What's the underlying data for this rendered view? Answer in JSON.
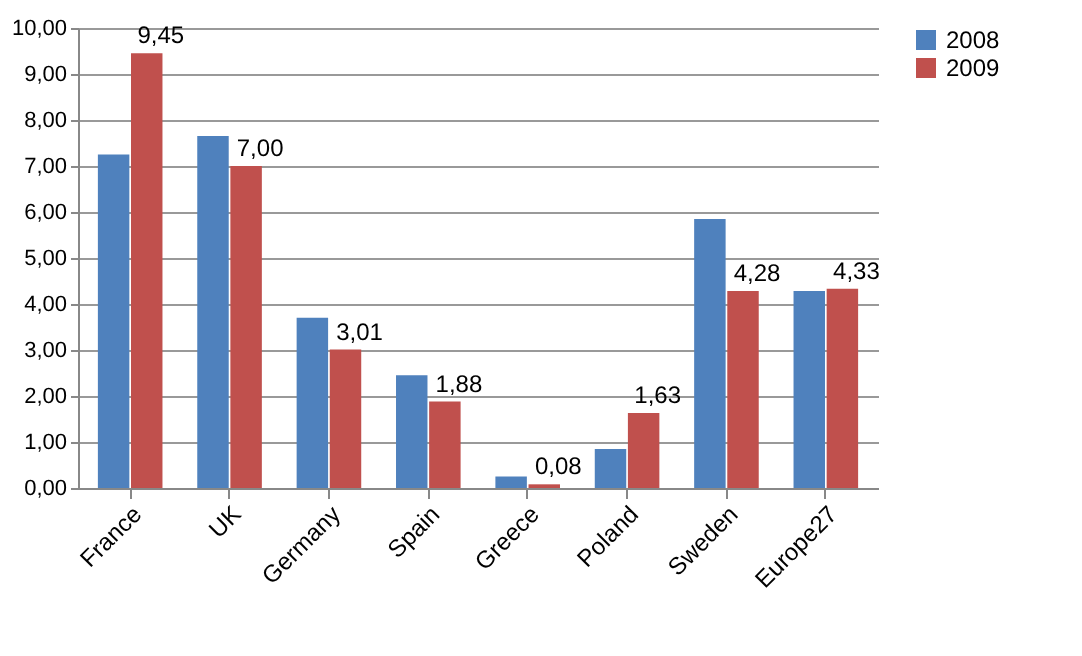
{
  "chart_data": {
    "type": "bar",
    "categories": [
      "France",
      "UK",
      "Germany",
      "Spain",
      "Greece",
      "Poland",
      "Sweden",
      "Europe27"
    ],
    "series": [
      {
        "name": "2008",
        "color": "#4f81bd",
        "values": [
          7.25,
          7.65,
          3.7,
          2.45,
          0.25,
          0.85,
          5.85,
          4.28
        ]
      },
      {
        "name": "2009",
        "color": "#c0504d",
        "values": [
          9.45,
          7.0,
          3.01,
          1.88,
          0.08,
          1.63,
          4.28,
          4.33
        ],
        "value_labels": [
          "9,45",
          "7,00",
          "3,01",
          "1,88",
          "0,08",
          "1,63",
          "4,28",
          "4,33"
        ]
      }
    ],
    "ylim": [
      0,
      10
    ],
    "yticks": [
      {
        "value": 0,
        "label": "0,00"
      },
      {
        "value": 1,
        "label": "1,00"
      },
      {
        "value": 2,
        "label": "2,00"
      },
      {
        "value": 3,
        "label": "3,00"
      },
      {
        "value": 4,
        "label": "4,00"
      },
      {
        "value": 5,
        "label": "5,00"
      },
      {
        "value": 6,
        "label": "6,00"
      },
      {
        "value": 7,
        "label": "7,00"
      },
      {
        "value": 8,
        "label": "8,00"
      },
      {
        "value": 9,
        "label": "9,00"
      },
      {
        "value": 10,
        "label": "10,00"
      }
    ],
    "grid": "y",
    "legend": "right"
  }
}
